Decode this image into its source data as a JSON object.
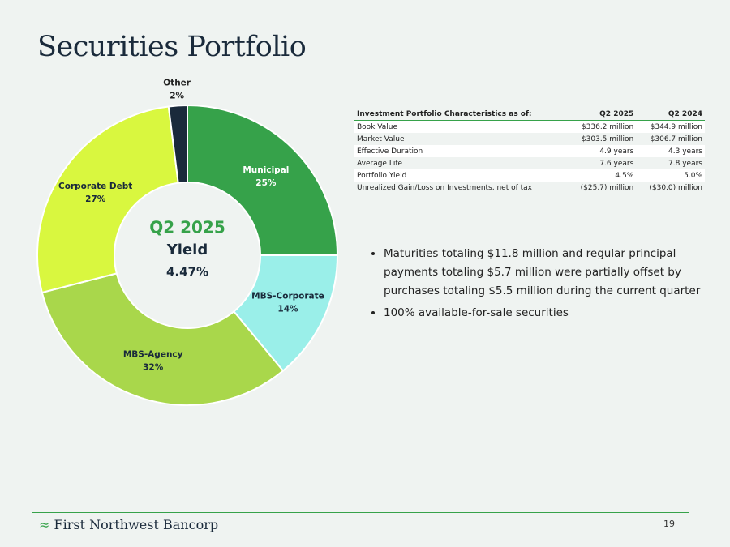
{
  "title": "Securities Portfolio",
  "chart_data": {
    "type": "donut",
    "categories": [
      "Municipal",
      "MBS-Corporate",
      "MBS-Agency",
      "Corporate Debt",
      "Other"
    ],
    "values": [
      25,
      14,
      32,
      27,
      2
    ],
    "value_labels": [
      "25%",
      "14%",
      "32%",
      "27%",
      "2%"
    ],
    "colors": [
      "#36a24a",
      "#9aefe9",
      "#a9d74b",
      "#d9f73f",
      "#1a2a3b"
    ],
    "center_text": [
      "Q2 2025",
      "Yield",
      "4.47%"
    ]
  },
  "table": {
    "header": [
      "Investment Portfolio Characteristics as of:",
      "Q2 2025",
      "Q2 2024"
    ],
    "rows": [
      [
        "Book Value",
        "$336.2 million",
        "$344.9 million"
      ],
      [
        "Market Value",
        "$303.5 million",
        "$306.7 million"
      ],
      [
        "Effective Duration",
        "4.9 years",
        "4.3 years"
      ],
      [
        "Average Life",
        "7.6 years",
        "7.8 years"
      ],
      [
        "Portfolio Yield",
        "4.5%",
        "5.0%"
      ],
      [
        "Unrealized Gain/Loss on Investments, net of tax",
        "($25.7) million",
        "($30.0) million"
      ]
    ]
  },
  "bullets": [
    "Maturities totaling $11.8 million and regular principal payments totaling $5.7 million were partially offset by purchases totaling $5.5 million during the current quarter",
    "100% available-for-sale securities"
  ],
  "footer": {
    "company": "First Northwest Bancorp",
    "page": "19"
  }
}
